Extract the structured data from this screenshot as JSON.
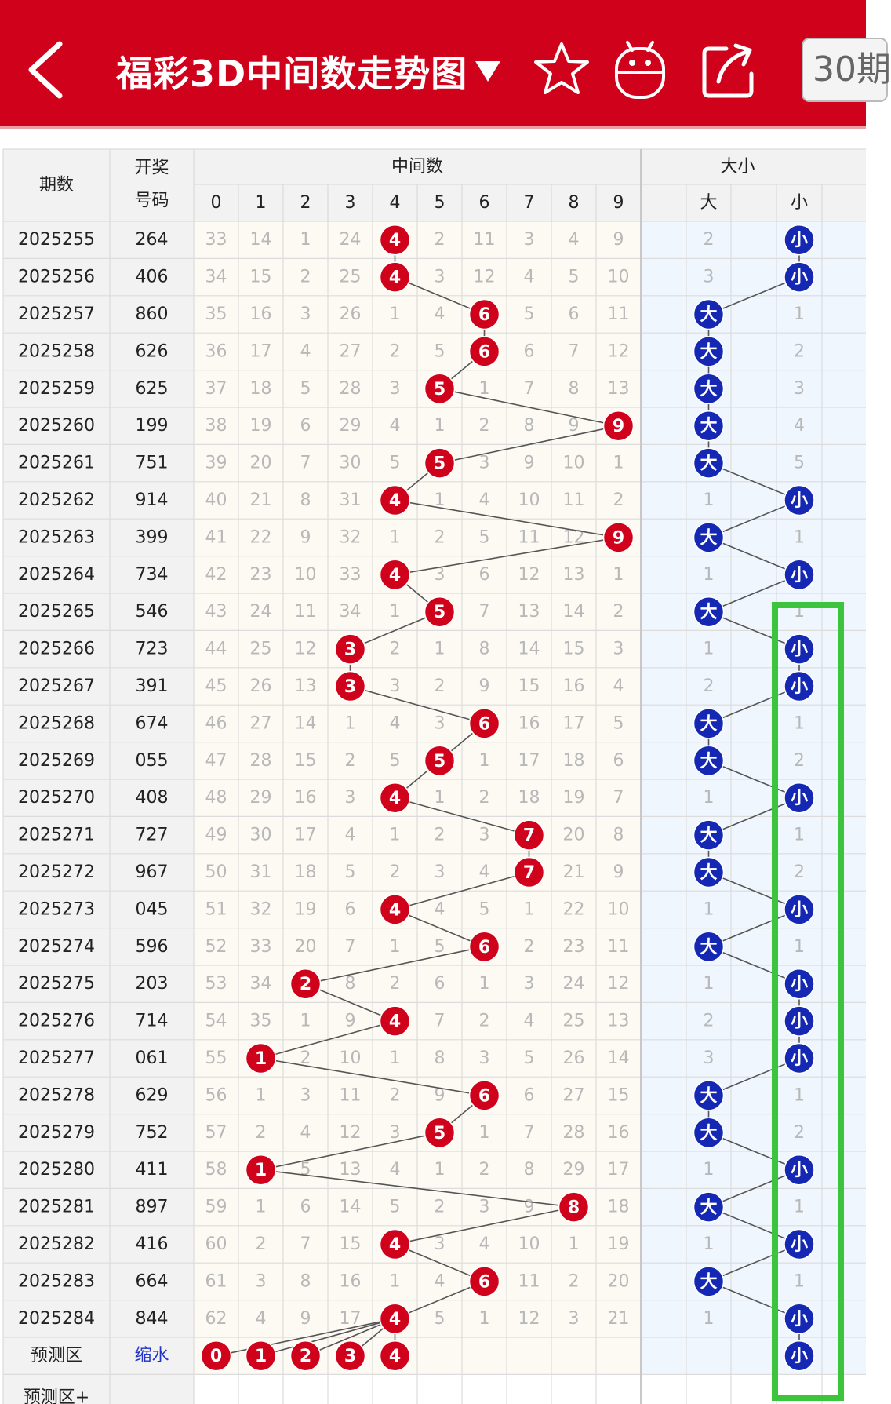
{
  "header": {
    "title": "福彩3D中间数走势图",
    "period_button": "30期"
  },
  "table": {
    "head": {
      "issue": "期数",
      "number_l1": "开奖",
      "number_l2": "号码",
      "middle_group": "中间数",
      "size_group": "大小",
      "big": "大",
      "small": "小",
      "digits": [
        "0",
        "1",
        "2",
        "3",
        "4",
        "5",
        "6",
        "7",
        "8",
        "9"
      ]
    },
    "rows": [
      {
        "issue": "2025255",
        "number": "264",
        "mid": 4,
        "size": "小",
        "m": [
          33,
          14,
          1,
          24,
          null,
          2,
          11,
          3,
          4,
          9
        ],
        "omit": 2
      },
      {
        "issue": "2025256",
        "number": "406",
        "mid": 4,
        "size": "小",
        "m": [
          34,
          15,
          2,
          25,
          null,
          3,
          12,
          4,
          5,
          10
        ],
        "omit": 3
      },
      {
        "issue": "2025257",
        "number": "860",
        "mid": 6,
        "size": "大",
        "m": [
          35,
          16,
          3,
          26,
          1,
          4,
          null,
          5,
          6,
          11
        ],
        "omit": 1
      },
      {
        "issue": "2025258",
        "number": "626",
        "mid": 6,
        "size": "大",
        "m": [
          36,
          17,
          4,
          27,
          2,
          5,
          null,
          6,
          7,
          12
        ],
        "omit": 2
      },
      {
        "issue": "2025259",
        "number": "625",
        "mid": 5,
        "size": "大",
        "m": [
          37,
          18,
          5,
          28,
          3,
          null,
          1,
          7,
          8,
          13
        ],
        "omit": 3
      },
      {
        "issue": "2025260",
        "number": "199",
        "mid": 9,
        "size": "大",
        "m": [
          38,
          19,
          6,
          29,
          4,
          1,
          2,
          8,
          9,
          null
        ],
        "omit": 4
      },
      {
        "issue": "2025261",
        "number": "751",
        "mid": 5,
        "size": "大",
        "m": [
          39,
          20,
          7,
          30,
          5,
          null,
          3,
          9,
          10,
          1
        ],
        "omit": 5
      },
      {
        "issue": "2025262",
        "number": "914",
        "mid": 4,
        "size": "小",
        "m": [
          40,
          21,
          8,
          31,
          null,
          1,
          4,
          10,
          11,
          2
        ],
        "omit": 1
      },
      {
        "issue": "2025263",
        "number": "399",
        "mid": 9,
        "size": "大",
        "m": [
          41,
          22,
          9,
          32,
          1,
          2,
          5,
          11,
          12,
          null
        ],
        "omit": 1
      },
      {
        "issue": "2025264",
        "number": "734",
        "mid": 4,
        "size": "小",
        "m": [
          42,
          23,
          10,
          33,
          null,
          3,
          6,
          12,
          13,
          1
        ],
        "omit": 1
      },
      {
        "issue": "2025265",
        "number": "546",
        "mid": 5,
        "size": "大",
        "m": [
          43,
          24,
          11,
          34,
          1,
          null,
          7,
          13,
          14,
          2
        ],
        "omit": 1
      },
      {
        "issue": "2025266",
        "number": "723",
        "mid": 3,
        "size": "小",
        "m": [
          44,
          25,
          12,
          null,
          2,
          1,
          8,
          14,
          15,
          3
        ],
        "omit": 1
      },
      {
        "issue": "2025267",
        "number": "391",
        "mid": 3,
        "size": "小",
        "m": [
          45,
          26,
          13,
          null,
          3,
          2,
          9,
          15,
          16,
          4
        ],
        "omit": 2
      },
      {
        "issue": "2025268",
        "number": "674",
        "mid": 6,
        "size": "大",
        "m": [
          46,
          27,
          14,
          1,
          4,
          3,
          null,
          16,
          17,
          5
        ],
        "omit": 1
      },
      {
        "issue": "2025269",
        "number": "055",
        "mid": 5,
        "size": "大",
        "m": [
          47,
          28,
          15,
          2,
          5,
          null,
          1,
          17,
          18,
          6
        ],
        "omit": 2
      },
      {
        "issue": "2025270",
        "number": "408",
        "mid": 4,
        "size": "小",
        "m": [
          48,
          29,
          16,
          3,
          null,
          1,
          2,
          18,
          19,
          7
        ],
        "omit": 1
      },
      {
        "issue": "2025271",
        "number": "727",
        "mid": 7,
        "size": "大",
        "m": [
          49,
          30,
          17,
          4,
          1,
          2,
          3,
          null,
          20,
          8
        ],
        "omit": 1
      },
      {
        "issue": "2025272",
        "number": "967",
        "mid": 7,
        "size": "大",
        "m": [
          50,
          31,
          18,
          5,
          2,
          3,
          4,
          null,
          21,
          9
        ],
        "omit": 2
      },
      {
        "issue": "2025273",
        "number": "045",
        "mid": 4,
        "size": "小",
        "m": [
          51,
          32,
          19,
          6,
          null,
          4,
          5,
          1,
          22,
          10
        ],
        "omit": 1
      },
      {
        "issue": "2025274",
        "number": "596",
        "mid": 6,
        "size": "大",
        "m": [
          52,
          33,
          20,
          7,
          1,
          5,
          null,
          2,
          23,
          11
        ],
        "omit": 1
      },
      {
        "issue": "2025275",
        "number": "203",
        "mid": 2,
        "size": "小",
        "m": [
          53,
          34,
          null,
          8,
          2,
          6,
          1,
          3,
          24,
          12
        ],
        "omit": 1
      },
      {
        "issue": "2025276",
        "number": "714",
        "mid": 4,
        "size": "小",
        "m": [
          54,
          35,
          1,
          9,
          null,
          7,
          2,
          4,
          25,
          13
        ],
        "omit": 2
      },
      {
        "issue": "2025277",
        "number": "061",
        "mid": 1,
        "size": "小",
        "m": [
          55,
          null,
          2,
          10,
          1,
          8,
          3,
          5,
          26,
          14
        ],
        "omit": 3
      },
      {
        "issue": "2025278",
        "number": "629",
        "mid": 6,
        "size": "大",
        "m": [
          56,
          1,
          3,
          11,
          2,
          9,
          null,
          6,
          27,
          15
        ],
        "omit": 1
      },
      {
        "issue": "2025279",
        "number": "752",
        "mid": 5,
        "size": "大",
        "m": [
          57,
          2,
          4,
          12,
          3,
          null,
          1,
          7,
          28,
          16
        ],
        "omit": 2
      },
      {
        "issue": "2025280",
        "number": "411",
        "mid": 1,
        "size": "小",
        "m": [
          58,
          null,
          5,
          13,
          4,
          1,
          2,
          8,
          29,
          17
        ],
        "omit": 1
      },
      {
        "issue": "2025281",
        "number": "897",
        "mid": 8,
        "size": "大",
        "m": [
          59,
          1,
          6,
          14,
          5,
          2,
          3,
          9,
          null,
          18
        ],
        "omit": 1
      },
      {
        "issue": "2025282",
        "number": "416",
        "mid": 4,
        "size": "小",
        "m": [
          60,
          2,
          7,
          15,
          null,
          3,
          4,
          10,
          1,
          19
        ],
        "omit": 1
      },
      {
        "issue": "2025283",
        "number": "664",
        "mid": 6,
        "size": "大",
        "m": [
          61,
          3,
          8,
          16,
          1,
          4,
          null,
          11,
          2,
          20
        ],
        "omit": 1
      },
      {
        "issue": "2025284",
        "number": "844",
        "mid": 4,
        "size": "小",
        "m": [
          62,
          4,
          9,
          17,
          null,
          5,
          1,
          12,
          3,
          21
        ],
        "omit": 1
      }
    ],
    "predict": {
      "label": "预测区",
      "link": "缩水",
      "balls": [
        "0",
        "1",
        "2",
        "3",
        "4"
      ],
      "size": "小"
    },
    "predict_plus": {
      "label": "预测区+"
    }
  },
  "colors": {
    "header_red": "#d0021b",
    "ball_red": "#d0021b",
    "ball_blue": "#1428b4",
    "highlight_green": "#3cc43c"
  }
}
